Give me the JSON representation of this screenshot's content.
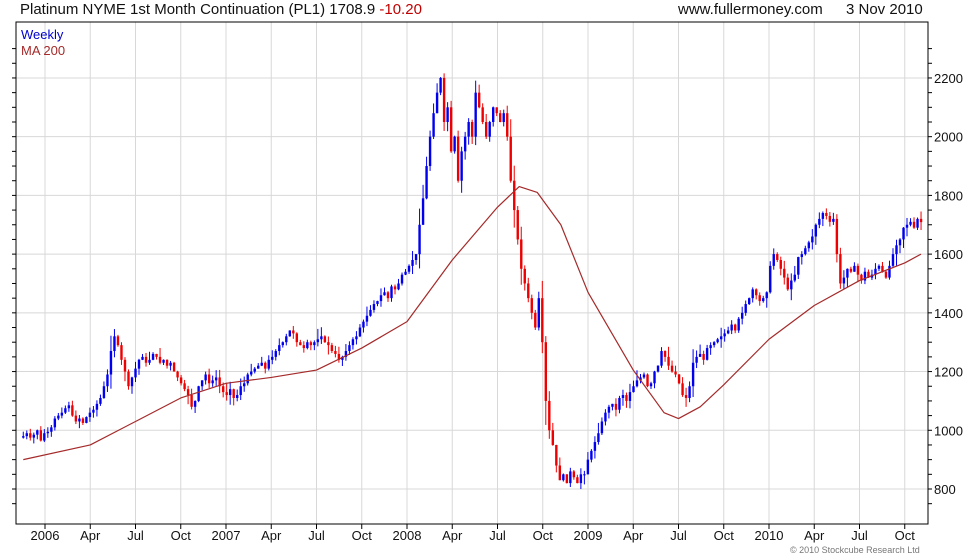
{
  "header": {
    "title": "Platinum NYME 1st Month Continuation (PL1) 1708.9",
    "change": "-10.20",
    "site": "www.fullermoney.com",
    "date": "3 Nov 2010"
  },
  "footer": {
    "copyright": "© 2010 Stockcube Research Ltd"
  },
  "chart_data": {
    "type": "candlestick",
    "title": "Platinum NYME 1st Month Continuation (PL1)",
    "last": 1708.9,
    "change": -10.2,
    "legend": [
      {
        "name": "Weekly",
        "color": "#0000cc"
      },
      {
        "name": "MA 200",
        "color": "#a52a2a"
      }
    ],
    "legend_placement": "top-left",
    "colors": {
      "up": "#0000ee",
      "down": "#ee0000",
      "ma": "#a52a2a",
      "grid": "#d8d8d8"
    },
    "ylim": [
      740,
      2320
    ],
    "yticks": [
      800,
      1000,
      1200,
      1400,
      1600,
      1800,
      2000,
      2200
    ],
    "xlim": [
      2005.85,
      2010.86
    ],
    "xticks": [
      {
        "t": 2006,
        "label": "2006"
      },
      {
        "t": 2006.25,
        "label": "Apr"
      },
      {
        "t": 2006.5,
        "label": "Jul"
      },
      {
        "t": 2006.75,
        "label": "Oct"
      },
      {
        "t": 2007,
        "label": "2007"
      },
      {
        "t": 2007.25,
        "label": "Apr"
      },
      {
        "t": 2007.5,
        "label": "Jul"
      },
      {
        "t": 2007.75,
        "label": "Oct"
      },
      {
        "t": 2008,
        "label": "2008"
      },
      {
        "t": 2008.25,
        "label": "Apr"
      },
      {
        "t": 2008.5,
        "label": "Jul"
      },
      {
        "t": 2008.75,
        "label": "Oct"
      },
      {
        "t": 2009,
        "label": "2009"
      },
      {
        "t": 2009.25,
        "label": "Apr"
      },
      {
        "t": 2009.5,
        "label": "Jul"
      },
      {
        "t": 2009.75,
        "label": "Oct"
      },
      {
        "t": 2010,
        "label": "2010"
      },
      {
        "t": 2010.25,
        "label": "Apr"
      },
      {
        "t": 2010.5,
        "label": "Jul"
      },
      {
        "t": 2010.75,
        "label": "Oct"
      }
    ],
    "weekly_start": 2005.88,
    "weekly_end": 2010.84,
    "weekly_close": [
      980,
      990,
      975,
      985,
      1000,
      965,
      990,
      995,
      1010,
      1040,
      1050,
      1060,
      1075,
      1085,
      1050,
      1030,
      1040,
      1025,
      1045,
      1060,
      1070,
      1090,
      1110,
      1150,
      1190,
      1270,
      1320,
      1290,
      1240,
      1200,
      1150,
      1180,
      1210,
      1240,
      1250,
      1230,
      1240,
      1260,
      1250,
      1230,
      1240,
      1220,
      1230,
      1200,
      1180,
      1160,
      1140,
      1120,
      1080,
      1100,
      1150,
      1170,
      1190,
      1160,
      1170,
      1180,
      1150,
      1130,
      1120,
      1140,
      1110,
      1120,
      1150,
      1160,
      1190,
      1200,
      1210,
      1220,
      1230,
      1210,
      1240,
      1250,
      1270,
      1290,
      1300,
      1320,
      1340,
      1330,
      1300,
      1290,
      1280,
      1300,
      1290,
      1300,
      1310,
      1320,
      1300,
      1290,
      1270,
      1260,
      1240,
      1250,
      1270,
      1290,
      1310,
      1320,
      1350,
      1370,
      1390,
      1410,
      1430,
      1440,
      1460,
      1470,
      1450,
      1490,
      1480,
      1500,
      1530,
      1540,
      1560,
      1580,
      1600,
      1700,
      1790,
      1900,
      2000,
      2080,
      2150,
      2200,
      2050,
      2100,
      1950,
      2000,
      1850,
      1950,
      2000,
      2050,
      2000,
      2150,
      2100,
      2050,
      2000,
      2050,
      2100,
      2080,
      2050,
      2080,
      2000,
      1850,
      1750,
      1650,
      1550,
      1500,
      1450,
      1400,
      1350,
      1450,
      1300,
      1100,
      1000,
      950,
      880,
      830,
      850,
      820,
      860,
      840,
      820,
      850,
      850,
      900,
      930,
      960,
      990,
      1030,
      1060,
      1080,
      1090,
      1070,
      1110,
      1120,
      1100,
      1130,
      1150,
      1170,
      1180,
      1190,
      1150,
      1160,
      1200,
      1220,
      1270,
      1250,
      1220,
      1200,
      1190,
      1160,
      1120,
      1110,
      1150,
      1230,
      1250,
      1260,
      1240,
      1280,
      1290,
      1300,
      1310,
      1320,
      1330,
      1340,
      1360,
      1340,
      1380,
      1400,
      1430,
      1450,
      1480,
      1460,
      1440,
      1450,
      1470,
      1560,
      1600,
      1580,
      1550,
      1520,
      1480,
      1510,
      1530,
      1590,
      1600,
      1620,
      1640,
      1660,
      1700,
      1720,
      1740,
      1730,
      1710,
      1720,
      1600,
      1500,
      1520,
      1550,
      1540,
      1560,
      1530,
      1510,
      1540,
      1520,
      1530,
      1550,
      1560,
      1540,
      1520,
      1560,
      1600,
      1630,
      1650,
      1690,
      1700,
      1710,
      1690,
      1720,
      1708.9
    ],
    "ma200": [
      [
        2005.88,
        900
      ],
      [
        2006.25,
        950
      ],
      [
        2006.5,
        1030
      ],
      [
        2006.75,
        1110
      ],
      [
        2007,
        1160
      ],
      [
        2007.25,
        1180
      ],
      [
        2007.5,
        1205
      ],
      [
        2007.75,
        1280
      ],
      [
        2008,
        1370
      ],
      [
        2008.25,
        1580
      ],
      [
        2008.5,
        1760
      ],
      [
        2008.62,
        1830
      ],
      [
        2008.72,
        1810
      ],
      [
        2008.85,
        1700
      ],
      [
        2009,
        1470
      ],
      [
        2009.25,
        1205
      ],
      [
        2009.42,
        1060
      ],
      [
        2009.5,
        1040
      ],
      [
        2009.62,
        1080
      ],
      [
        2009.75,
        1155
      ],
      [
        2010,
        1310
      ],
      [
        2010.25,
        1425
      ],
      [
        2010.5,
        1510
      ],
      [
        2010.75,
        1570
      ],
      [
        2010.84,
        1600
      ]
    ]
  }
}
